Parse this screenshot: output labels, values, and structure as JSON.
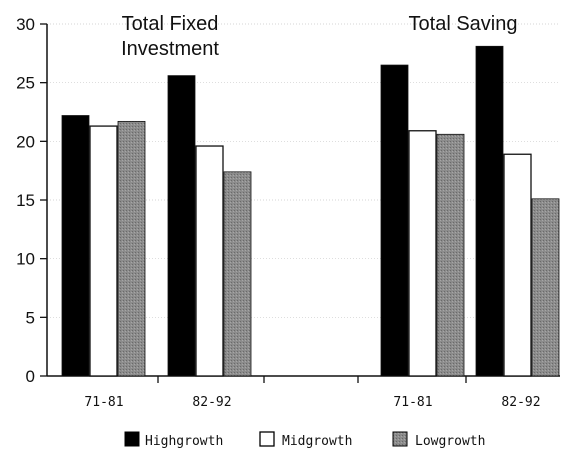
{
  "chart_data": {
    "type": "bar",
    "groups": [
      {
        "title_lines": [
          "Total Fixed",
          "Investment"
        ],
        "periods": [
          "71-81",
          "82-92"
        ]
      },
      {
        "title_lines": [
          "Total Saving"
        ],
        "periods": [
          "71-81",
          "82-92"
        ]
      }
    ],
    "series": [
      {
        "name": "Highgrowth",
        "color": "#000000",
        "values": [
          22.2,
          25.6,
          26.5,
          28.1
        ]
      },
      {
        "name": "Midgrowth",
        "color": "#ffffff",
        "values": [
          21.3,
          19.6,
          20.9,
          18.9
        ]
      },
      {
        "name": "Lowgrowth",
        "color": "#8c8c8c",
        "values": [
          21.7,
          17.4,
          20.6,
          15.1
        ]
      }
    ],
    "ylim": [
      0,
      30
    ],
    "yticks": [
      0,
      5,
      10,
      15,
      20,
      25,
      30
    ],
    "legend_position": "bottom"
  }
}
